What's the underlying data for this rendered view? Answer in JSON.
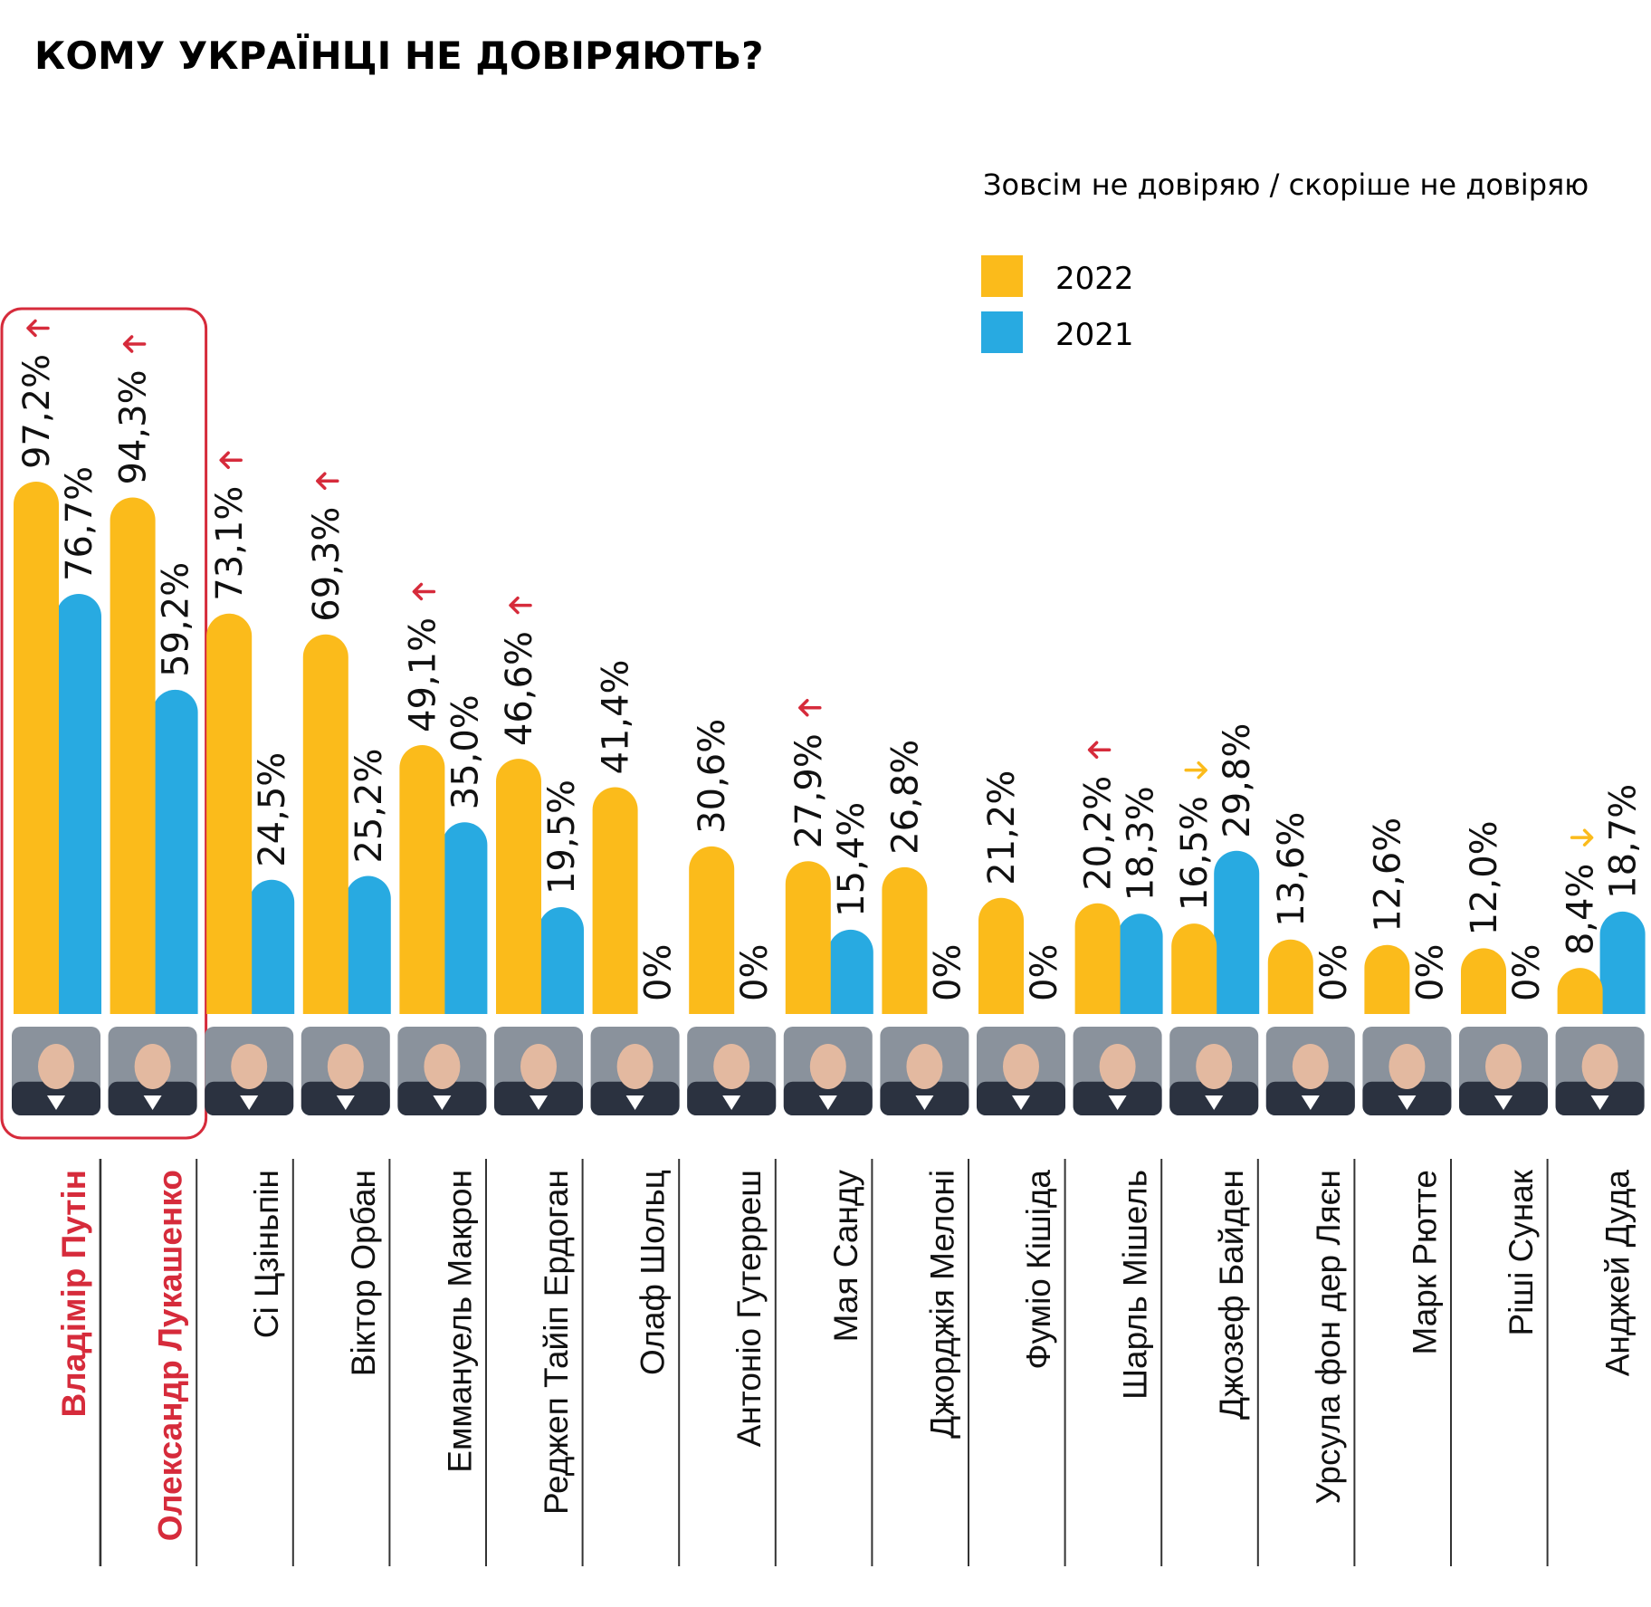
{
  "title": "КОМУ УКРАЇНЦІ НЕ ДОВІРЯЮТЬ?",
  "colors": {
    "y2022": "#fbbb1b",
    "y2021": "#28aae1",
    "highlight": "#d62b3b",
    "divider": "#333333"
  },
  "chart_data": {
    "type": "bar",
    "title": "КОМУ УКРАЇНЦІ НЕ ДОВІРЯЮТЬ?",
    "legend_title": "Зовсім не довіряю / скоріше не довіряю",
    "legend_position": "top-right",
    "ylim": [
      0,
      100
    ],
    "categories": [
      "Владімір Путін",
      "Олександр Лукашенко",
      "Сі Цзіньпін",
      "Віктор Орбан",
      "Еммануель Макрон",
      "Реджеп Тайіп Ердоган",
      "Олаф Шольц",
      "Антоніо Гутерреш",
      "Мая Санду",
      "Джорджія Мелоні",
      "Фуміо Кішіда",
      "Шарль Мішель",
      "Джозеф Байден",
      "Урсула фон дер Ляєн",
      "Марк Рютте",
      "Ріші Сунак",
      "Анджей Дуда"
    ],
    "highlighted": [
      0,
      1
    ],
    "series": [
      {
        "name": "2022",
        "color": "#fbbb1b",
        "values": [
          97.2,
          94.3,
          73.1,
          69.3,
          49.1,
          46.6,
          41.4,
          30.6,
          27.9,
          26.8,
          21.2,
          20.2,
          16.5,
          13.6,
          12.6,
          12.0,
          8.4
        ],
        "labels": [
          "97,2%",
          "94,3%",
          "73,1%",
          "69,3%",
          "49,1%",
          "46,6%",
          "41,4%",
          "30,6%",
          "27,9%",
          "26,8%",
          "21,2%",
          "20,2%",
          "16,5%",
          "13,6%",
          "12,6%",
          "12,0%",
          "8,4%"
        ]
      },
      {
        "name": "2021",
        "color": "#28aae1",
        "values": [
          76.7,
          59.2,
          24.5,
          25.2,
          35.0,
          19.5,
          0,
          0,
          15.4,
          0,
          0,
          18.3,
          29.8,
          0,
          0,
          0,
          18.7
        ],
        "labels": [
          "76,7%",
          "59,2%",
          "24,5%",
          "25,2%",
          "35,0%",
          "19,5%",
          "0%",
          "0%",
          "15,4%",
          "0%",
          "0%",
          "18,3%",
          "29,8%",
          "0%",
          "0%",
          "0%",
          "18,7%"
        ]
      }
    ],
    "trend": [
      "up",
      "up",
      "up",
      "up",
      "up",
      "up",
      "none",
      "none",
      "up",
      "none",
      "none",
      "up",
      "down",
      "none",
      "none",
      "none",
      "down"
    ],
    "portraits": [
      "putin-portrait",
      "lukashenko-portrait",
      "xi-portrait",
      "orban-portrait",
      "macron-portrait",
      "erdogan-portrait",
      "scholz-portrait",
      "guterres-portrait",
      "sandu-portrait",
      "meloni-portrait",
      "kishida-portrait",
      "michel-portrait",
      "biden-portrait",
      "von-der-leyen-portrait",
      "rutte-portrait",
      "sunak-portrait",
      "duda-portrait"
    ]
  }
}
